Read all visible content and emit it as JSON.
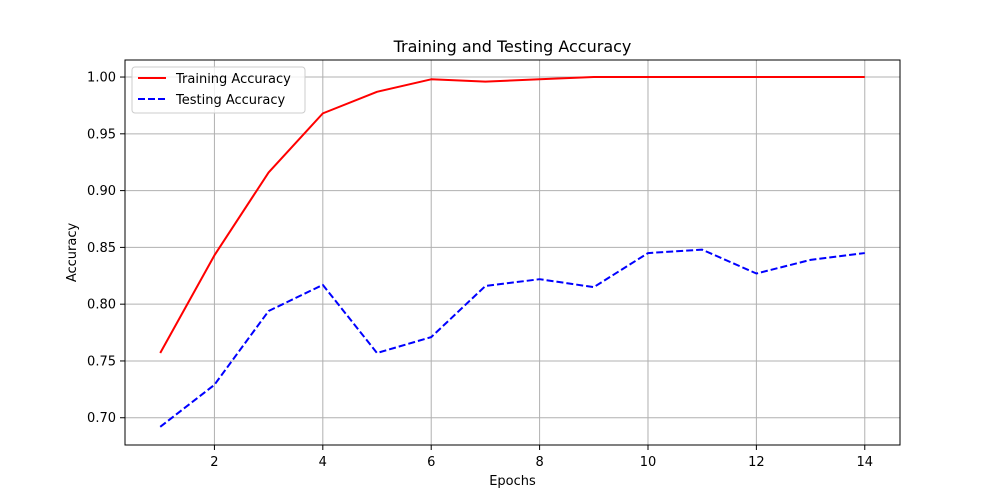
{
  "chart_data": {
    "type": "line",
    "title": "Training and Testing Accuracy",
    "xlabel": "Epochs",
    "ylabel": "Accuracy",
    "x": [
      1,
      2,
      3,
      4,
      5,
      6,
      7,
      8,
      9,
      10,
      11,
      12,
      13,
      14
    ],
    "xlim": [
      0.35,
      14.65
    ],
    "ylim": [
      0.676,
      1.015
    ],
    "xticks": [
      2,
      4,
      6,
      8,
      10,
      12,
      14
    ],
    "yticks": [
      0.7,
      0.75,
      0.8,
      0.85,
      0.9,
      0.95,
      1.0
    ],
    "ytick_labels": [
      "0.70",
      "0.75",
      "0.80",
      "0.85",
      "0.90",
      "0.95",
      "1.00"
    ],
    "grid": true,
    "legend_position": "top-left",
    "series": [
      {
        "name": "Training Accuracy",
        "color": "#ff0000",
        "line_style": "solid",
        "values": [
          0.757,
          0.843,
          0.916,
          0.968,
          0.987,
          0.998,
          0.996,
          0.998,
          1.0,
          1.0,
          1.0,
          1.0,
          1.0,
          1.0
        ]
      },
      {
        "name": "Testing Accuracy",
        "color": "#0000ff",
        "line_style": "dashed",
        "values": [
          0.692,
          0.729,
          0.794,
          0.817,
          0.757,
          0.771,
          0.816,
          0.822,
          0.815,
          0.845,
          0.848,
          0.827,
          0.839,
          0.845
        ]
      }
    ]
  }
}
